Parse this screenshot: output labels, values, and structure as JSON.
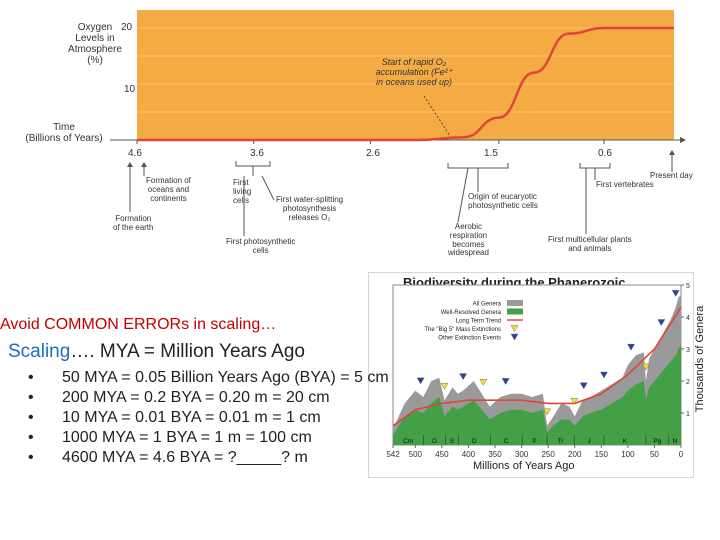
{
  "oxygen_chart": {
    "ylabel_lines": [
      "Oxygen",
      "Levels in",
      "Atmosphere",
      "(%)"
    ],
    "y_ticks": [
      "20",
      "10"
    ],
    "xlabel_lines": [
      "Time",
      "(Billions of Years)"
    ],
    "x_ticks": [
      "4.6",
      "3.6",
      "2.6",
      "1.5",
      "0.6"
    ],
    "annotation_lines": [
      "Start of rapid O₂",
      "accumulation (Fe²⁺",
      "in oceans used up)"
    ],
    "curve": {
      "x_bya": [
        4.6,
        2.2,
        1.8,
        1.5,
        1.2,
        0.9,
        0.6,
        0.0
      ],
      "y_pct": [
        0,
        0,
        0.5,
        4,
        12,
        19,
        20,
        20
      ]
    },
    "events": [
      {
        "label": "Formation of\noceans and\ncontinents"
      },
      {
        "label": "Formation\nof the earth"
      },
      {
        "label": "First\nliving\ncells"
      },
      {
        "label": "First photosynthetic\ncells"
      },
      {
        "label": "First water-splitting\nphotosynthesis\nreleases O₂"
      },
      {
        "label": "Aerobic\nrespiration\nbecomes\nwidespread"
      },
      {
        "label": "Origin of eucaryotic\nphotosynthetic cells"
      },
      {
        "label": "First vertebrates"
      },
      {
        "label": "First multicellular plants\nand animals"
      },
      {
        "label": "Present day"
      }
    ],
    "colors": {
      "fill": "#f5ab44",
      "line": "#e0453a",
      "grid": "#f7c070"
    }
  },
  "heading": "Avoid COMMON ERRORs in scaling…",
  "subheading": {
    "prefix": "Scaling",
    "rest": "…. MYA = Million Years Ago"
  },
  "bullets": [
    "50 MYA = 0.05 Billion Years Ago (BYA) = 5 cm",
    "200 MYA = 0.2 BYA = 0.20 m = 20 cm",
    "10 MYA = 0.01 BYA = 0.01 m = 1 cm",
    "1000 MYA = 1 BYA = 1 m = 100 cm",
    "4600 MYA = 4.6 BYA = ?_____? m"
  ],
  "bullet_symbol": "•",
  "chart_data": {
    "type": "area",
    "title": "Biodiversity during the Phanerozoic",
    "xlabel": "Millions of Years Ago",
    "ylabel": "Thousands of Genera",
    "xlim": [
      542,
      0
    ],
    "ylim": [
      0,
      5
    ],
    "x_ticks": [
      "542",
      "500",
      "450",
      "400",
      "350",
      "300",
      "250",
      "200",
      "150",
      "100",
      "50",
      "0"
    ],
    "y_ticks": [
      "1",
      "2",
      "3",
      "4",
      "5"
    ],
    "periods": [
      "Cm",
      "O",
      "S",
      "D",
      "C",
      "P",
      "Tr",
      "J",
      "K",
      "Pg",
      "N"
    ],
    "legend": [
      {
        "label": "All Genera"
      },
      {
        "label": "Well-Resolved Genera"
      },
      {
        "label": "Long Term Trend"
      },
      {
        "label": "The \"Big 5\" Mass Extinctions"
      },
      {
        "label": "Other Extinction Events"
      }
    ],
    "series": [
      {
        "name": "All Genera",
        "x": [
          542,
          520,
          500,
          485,
          470,
          455,
          445,
          430,
          420,
          410,
          390,
          375,
          360,
          340,
          320,
          300,
          280,
          260,
          252,
          240,
          225,
          210,
          200,
          185,
          170,
          150,
          130,
          110,
          100,
          85,
          70,
          66,
          60,
          50,
          40,
          30,
          20,
          10,
          5,
          0
        ],
        "values": [
          0.5,
          1.3,
          1.7,
          1.5,
          2.0,
          2.1,
          1.4,
          1.8,
          1.6,
          1.7,
          2.0,
          1.6,
          1.2,
          1.5,
          1.6,
          1.6,
          1.5,
          1.6,
          0.6,
          0.9,
          1.3,
          1.2,
          0.9,
          1.4,
          1.5,
          1.7,
          1.9,
          2.1,
          2.5,
          2.8,
          2.9,
          2.0,
          2.7,
          3.0,
          3.3,
          3.6,
          3.9,
          4.3,
          4.6,
          4.7
        ]
      },
      {
        "name": "Well-Resolved Genera",
        "x": [
          542,
          520,
          500,
          485,
          470,
          455,
          445,
          430,
          420,
          410,
          390,
          375,
          360,
          340,
          320,
          300,
          280,
          260,
          252,
          240,
          225,
          210,
          200,
          185,
          170,
          150,
          130,
          110,
          100,
          85,
          70,
          66,
          60,
          50,
          40,
          30,
          20,
          10,
          5,
          0
        ],
        "values": [
          0.3,
          0.9,
          1.1,
          1.0,
          1.3,
          1.5,
          0.9,
          1.2,
          1.1,
          1.2,
          1.4,
          1.1,
          0.8,
          1.0,
          1.1,
          1.1,
          1.0,
          1.1,
          0.4,
          0.6,
          0.8,
          0.8,
          0.6,
          0.9,
          1.0,
          1.1,
          1.3,
          1.5,
          1.7,
          1.9,
          2.0,
          1.4,
          1.8,
          2.0,
          2.2,
          2.4,
          2.6,
          2.8,
          3.0,
          3.1
        ]
      },
      {
        "name": "Long Term Trend",
        "x": [
          542,
          500,
          450,
          400,
          350,
          300,
          250,
          200,
          150,
          100,
          50,
          0
        ],
        "values": [
          0.6,
          1.1,
          1.3,
          1.4,
          1.4,
          1.4,
          1.3,
          1.3,
          1.6,
          2.2,
          3.0,
          4.3
        ]
      }
    ],
    "big5_extinctions": [
      445,
      372,
      252,
      201,
      66
    ],
    "other_extinctions": [
      490,
      410,
      330,
      183,
      145,
      94,
      37,
      10
    ]
  }
}
